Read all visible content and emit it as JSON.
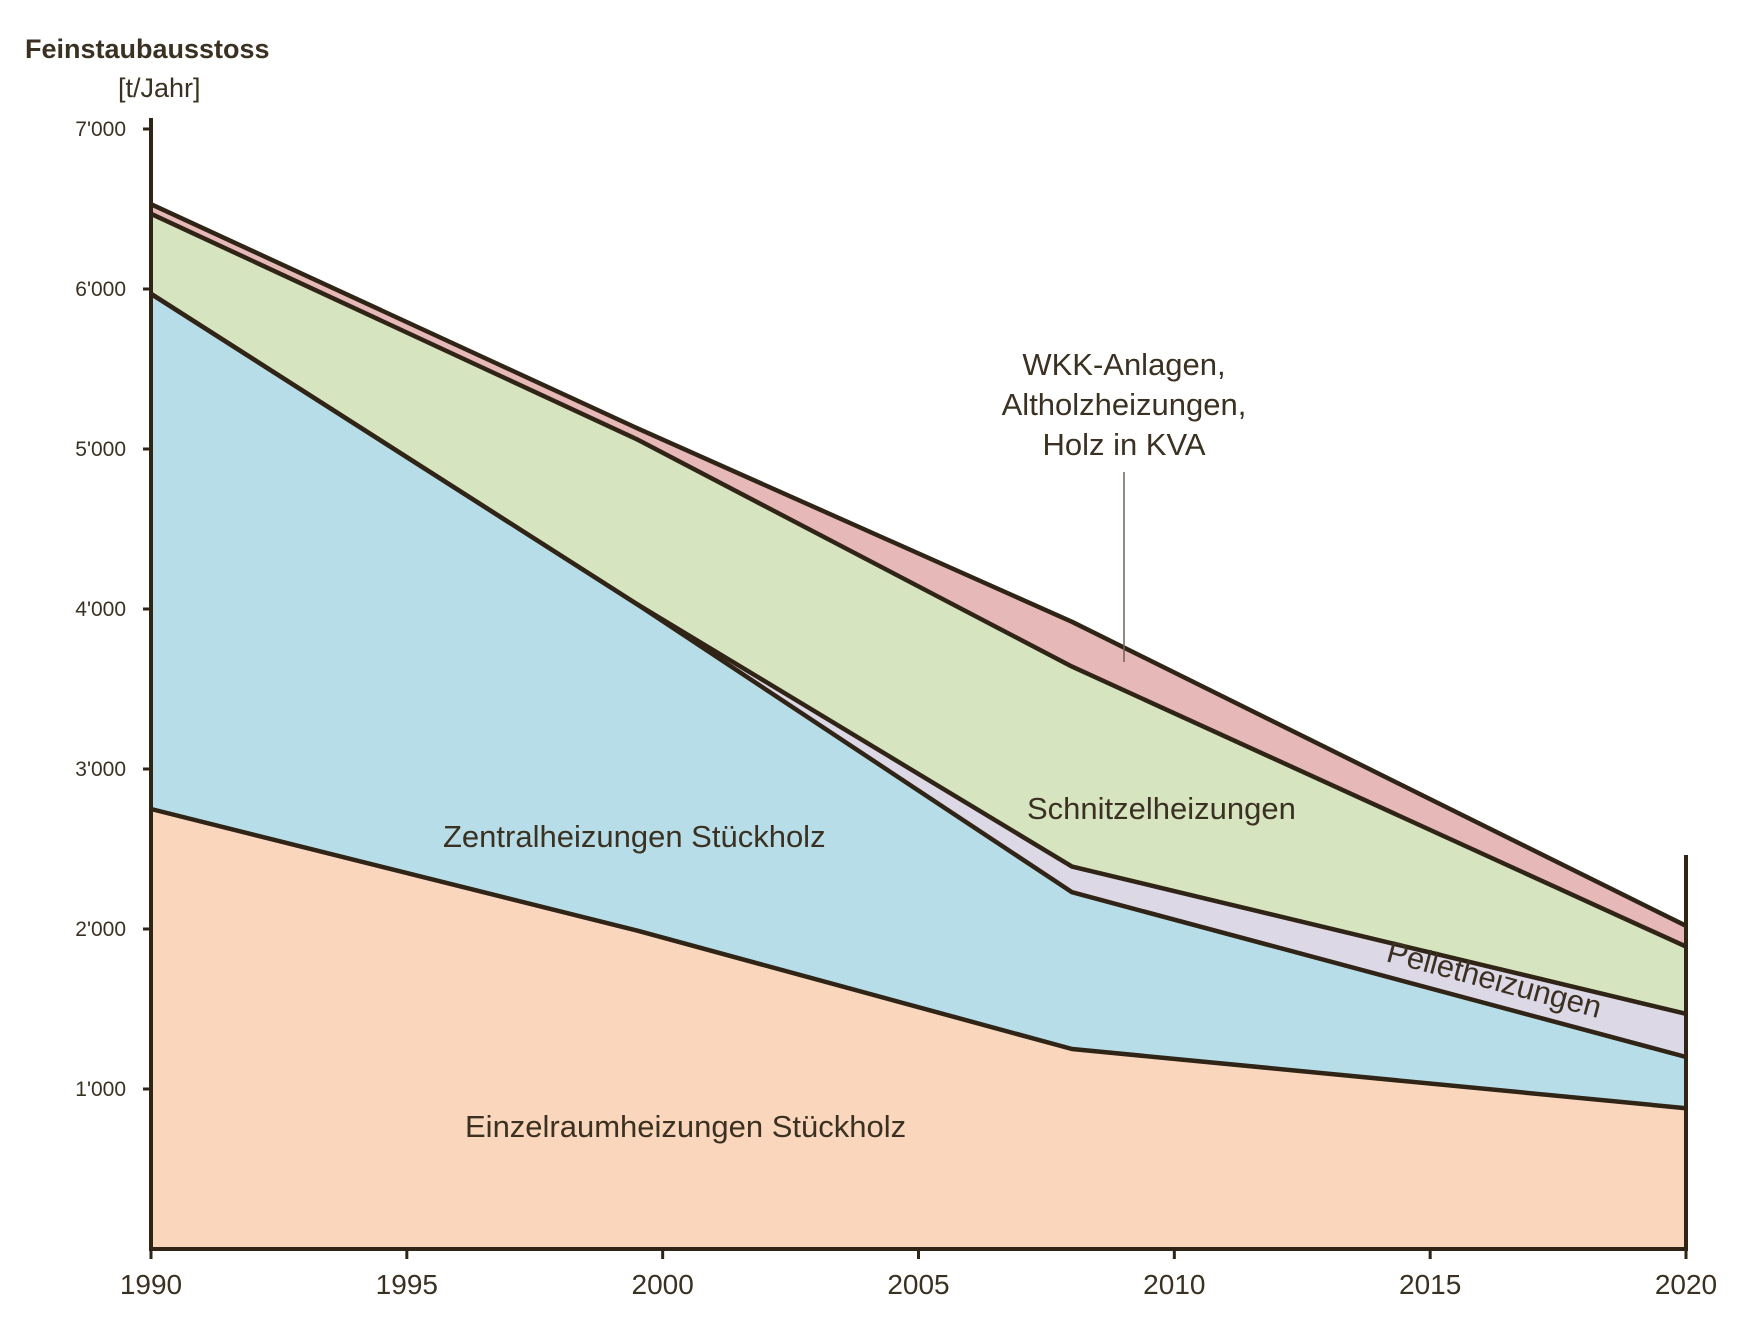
{
  "chart_data": {
    "type": "area",
    "stacked": true,
    "ylabel": "Feinstaubausstoss",
    "yunit": "[t/Jahr]",
    "x": [
      1990,
      1999.5,
      2008,
      2020
    ],
    "xlim": [
      1990,
      2020
    ],
    "ylim": [
      0,
      7000
    ],
    "xticks": [
      "1990",
      "1995",
      "2000",
      "2005",
      "2010",
      "2015",
      "2020"
    ],
    "yticks": [
      "1'000",
      "2'000",
      "3'000",
      "4'000",
      "5'000",
      "6'000",
      "7'000"
    ],
    "grid": false,
    "legend": "none",
    "series": [
      {
        "name": "Einzelraumheizungen Stückholz",
        "color": "#fad7bc",
        "values": [
          2750,
          1990,
          1250,
          880
        ]
      },
      {
        "name": "Zentralheizungen Stückholz",
        "color": "#b7dee8",
        "values": [
          3220,
          2040,
          980,
          320
        ]
      },
      {
        "name": "Pelletheizungen",
        "color": "#ddd8e6",
        "values": [
          0,
          0,
          160,
          270
        ]
      },
      {
        "name": "Schnitzelheizungen",
        "color": "#d7e4c0",
        "values": [
          500,
          1030,
          1250,
          420
        ]
      },
      {
        "name": "WKK-Anlagen, Altholzheizungen, Holz in KVA",
        "color": "#e6b8b8",
        "values": [
          60,
          70,
          280,
          130
        ]
      }
    ]
  },
  "labels": {
    "einzelraum": "Einzelraumheizungen Stückholz",
    "zentral": "Zentralheizungen Stückholz",
    "schnitzel": "Schnitzelheizungen",
    "pellet": "Pelletheizungen",
    "wkk_lines": [
      "WKK-Anlagen,",
      "Altholzheizungen,",
      "Holz in KVA"
    ]
  },
  "colors": {
    "outline": "#2f2416",
    "text": "#3b3122"
  }
}
